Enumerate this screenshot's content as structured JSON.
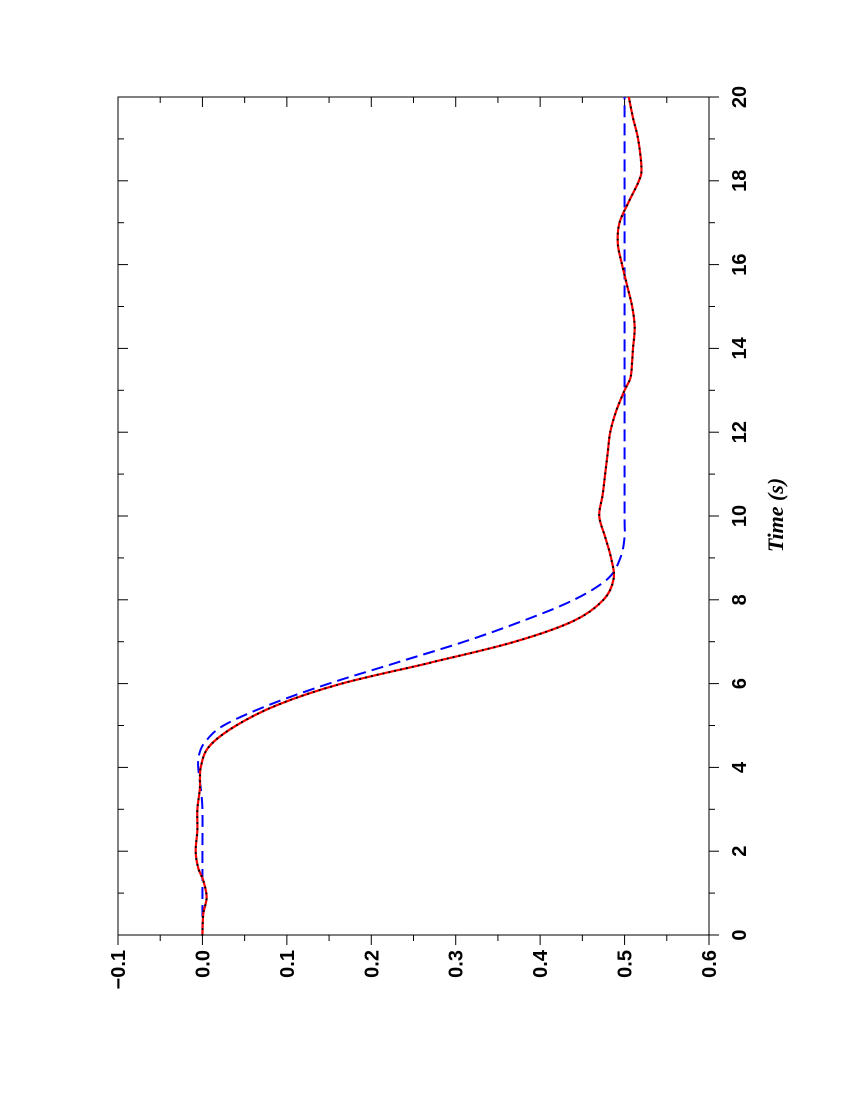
{
  "chart_data": {
    "type": "line",
    "orientation": "rotated-90-clockwise",
    "title": "",
    "xlabel": "Time (s)",
    "ylabel": "",
    "xlim": [
      0,
      20
    ],
    "ylim": [
      -0.1,
      0.6
    ],
    "x_ticks": [
      "0",
      "2",
      "4",
      "6",
      "8",
      "10",
      "12",
      "14",
      "16",
      "18",
      "20"
    ],
    "y_ticks": [
      "−0.1",
      "0.0",
      "0.1",
      "0.2",
      "0.3",
      "0.4",
      "0.5",
      "0.6"
    ],
    "grid": false,
    "legend": "none",
    "series": [
      {
        "style": "dashed",
        "color": "#0000ff",
        "x": [
          0,
          1,
          2,
          3,
          3.5,
          4,
          4.3,
          4.6,
          5,
          5.5,
          6,
          6.5,
          7,
          7.5,
          8,
          8.5,
          9,
          9.5,
          10,
          12,
          14,
          16,
          18,
          20
        ],
        "y": [
          0,
          0,
          0,
          0,
          -0.002,
          -0.005,
          -0.004,
          0.003,
          0.025,
          0.08,
          0.15,
          0.23,
          0.31,
          0.38,
          0.44,
          0.48,
          0.495,
          0.5,
          0.5,
          0.5,
          0.5,
          0.5,
          0.5,
          0.5
        ]
      },
      {
        "style": "solid-with-markers",
        "color": "#ff0000",
        "marker_color": "#000000",
        "x": [
          0,
          0.5,
          0.9,
          1.3,
          1.6,
          2,
          2.5,
          3,
          3.5,
          4,
          4.5,
          5,
          5.5,
          6,
          6.5,
          7,
          7.5,
          8,
          8.5,
          9,
          9.5,
          10,
          10.5,
          11,
          11.5,
          12,
          12.5,
          13,
          13.3,
          13.7,
          14,
          14.5,
          15,
          15.5,
          16,
          16.5,
          17,
          17.5,
          18,
          18.3,
          19,
          19.5,
          20
        ],
        "y": [
          0,
          0.001,
          0.005,
          0.001,
          -0.005,
          -0.008,
          -0.006,
          -0.006,
          -0.003,
          -0.002,
          0.008,
          0.04,
          0.09,
          0.165,
          0.27,
          0.37,
          0.44,
          0.475,
          0.487,
          0.484,
          0.477,
          0.47,
          0.474,
          0.477,
          0.48,
          0.483,
          0.49,
          0.5,
          0.507,
          0.509,
          0.51,
          0.512,
          0.509,
          0.503,
          0.497,
          0.492,
          0.494,
          0.505,
          0.517,
          0.52,
          0.516,
          0.51,
          0.505
        ]
      }
    ]
  }
}
